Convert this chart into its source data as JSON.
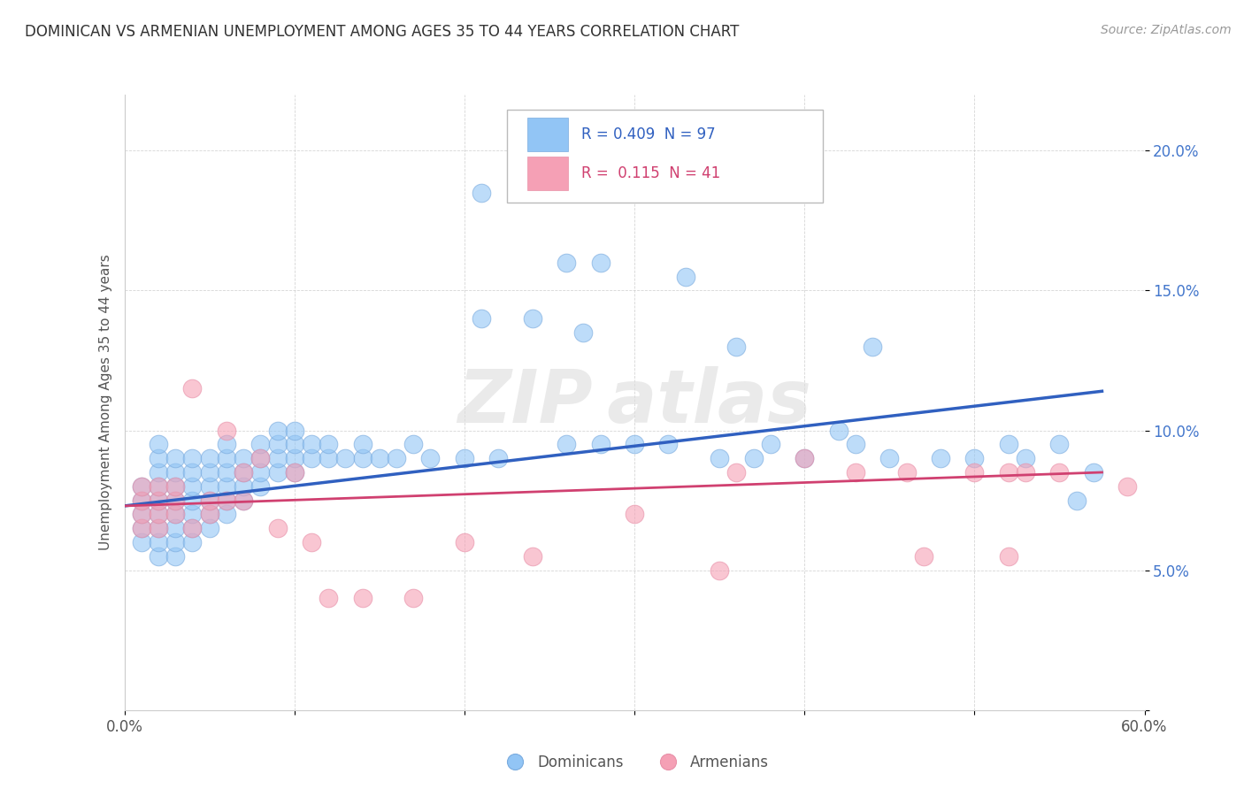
{
  "title": "DOMINICAN VS ARMENIAN UNEMPLOYMENT AMONG AGES 35 TO 44 YEARS CORRELATION CHART",
  "source": "Source: ZipAtlas.com",
  "ylabel": "Unemployment Among Ages 35 to 44 years",
  "xlim": [
    0.0,
    0.6
  ],
  "ylim": [
    0.0,
    0.22
  ],
  "xticks": [
    0.0,
    0.1,
    0.2,
    0.3,
    0.4,
    0.5,
    0.6
  ],
  "xtick_labels": [
    "0.0%",
    "",
    "",
    "",
    "",
    "",
    "60.0%"
  ],
  "yticks": [
    0.0,
    0.05,
    0.1,
    0.15,
    0.2
  ],
  "ytick_labels": [
    "",
    "5.0%",
    "10.0%",
    "15.0%",
    "20.0%"
  ],
  "dominican_color": "#92c5f5",
  "armenian_color": "#f5a0b5",
  "trend_dominican_color": "#3060c0",
  "trend_armenian_color": "#d04070",
  "legend_R_dominican": "0.409",
  "legend_N_dominican": "97",
  "legend_R_armenian": "0.115",
  "legend_N_armenian": "41",
  "dom_trend_x0": 0.0,
  "dom_trend_y0": 0.073,
  "dom_trend_x1": 0.575,
  "dom_trend_y1": 0.114,
  "arm_trend_x0": 0.0,
  "arm_trend_y0": 0.073,
  "arm_trend_x1": 0.575,
  "arm_trend_y1": 0.085,
  "dominican_x": [
    0.01,
    0.01,
    0.01,
    0.01,
    0.01,
    0.02,
    0.02,
    0.02,
    0.02,
    0.02,
    0.02,
    0.02,
    0.02,
    0.02,
    0.03,
    0.03,
    0.03,
    0.03,
    0.03,
    0.03,
    0.03,
    0.03,
    0.04,
    0.04,
    0.04,
    0.04,
    0.04,
    0.04,
    0.04,
    0.05,
    0.05,
    0.05,
    0.05,
    0.05,
    0.05,
    0.06,
    0.06,
    0.06,
    0.06,
    0.06,
    0.06,
    0.07,
    0.07,
    0.07,
    0.07,
    0.08,
    0.08,
    0.08,
    0.08,
    0.09,
    0.09,
    0.09,
    0.09,
    0.1,
    0.1,
    0.1,
    0.1,
    0.11,
    0.11,
    0.12,
    0.12,
    0.13,
    0.14,
    0.14,
    0.15,
    0.16,
    0.17,
    0.18,
    0.2,
    0.21,
    0.22,
    0.24,
    0.26,
    0.28,
    0.3,
    0.32,
    0.35,
    0.37,
    0.4,
    0.43,
    0.45,
    0.48,
    0.5,
    0.53,
    0.55,
    0.57,
    0.21,
    0.26,
    0.27,
    0.28,
    0.33,
    0.36,
    0.38,
    0.42,
    0.44,
    0.52,
    0.56
  ],
  "dominican_y": [
    0.06,
    0.065,
    0.07,
    0.075,
    0.08,
    0.055,
    0.06,
    0.065,
    0.07,
    0.075,
    0.08,
    0.085,
    0.09,
    0.095,
    0.055,
    0.06,
    0.065,
    0.07,
    0.075,
    0.08,
    0.085,
    0.09,
    0.06,
    0.065,
    0.07,
    0.075,
    0.08,
    0.085,
    0.09,
    0.065,
    0.07,
    0.075,
    0.08,
    0.085,
    0.09,
    0.07,
    0.075,
    0.08,
    0.085,
    0.09,
    0.095,
    0.075,
    0.08,
    0.085,
    0.09,
    0.08,
    0.085,
    0.09,
    0.095,
    0.085,
    0.09,
    0.095,
    0.1,
    0.085,
    0.09,
    0.095,
    0.1,
    0.09,
    0.095,
    0.09,
    0.095,
    0.09,
    0.09,
    0.095,
    0.09,
    0.09,
    0.095,
    0.09,
    0.09,
    0.14,
    0.09,
    0.14,
    0.095,
    0.095,
    0.095,
    0.095,
    0.09,
    0.09,
    0.09,
    0.095,
    0.09,
    0.09,
    0.09,
    0.09,
    0.095,
    0.085,
    0.185,
    0.16,
    0.135,
    0.16,
    0.155,
    0.13,
    0.095,
    0.1,
    0.13,
    0.095,
    0.075
  ],
  "armenian_x": [
    0.01,
    0.01,
    0.01,
    0.01,
    0.02,
    0.02,
    0.02,
    0.02,
    0.03,
    0.03,
    0.03,
    0.04,
    0.04,
    0.05,
    0.05,
    0.06,
    0.06,
    0.07,
    0.07,
    0.08,
    0.09,
    0.1,
    0.11,
    0.12,
    0.14,
    0.17,
    0.2,
    0.24,
    0.3,
    0.35,
    0.36,
    0.4,
    0.43,
    0.46,
    0.47,
    0.5,
    0.52,
    0.52,
    0.53,
    0.55,
    0.59
  ],
  "armenian_y": [
    0.065,
    0.07,
    0.075,
    0.08,
    0.065,
    0.07,
    0.075,
    0.08,
    0.07,
    0.075,
    0.08,
    0.065,
    0.115,
    0.07,
    0.075,
    0.075,
    0.1,
    0.075,
    0.085,
    0.09,
    0.065,
    0.085,
    0.06,
    0.04,
    0.04,
    0.04,
    0.06,
    0.055,
    0.07,
    0.05,
    0.085,
    0.09,
    0.085,
    0.085,
    0.055,
    0.085,
    0.085,
    0.055,
    0.085,
    0.085,
    0.08
  ]
}
